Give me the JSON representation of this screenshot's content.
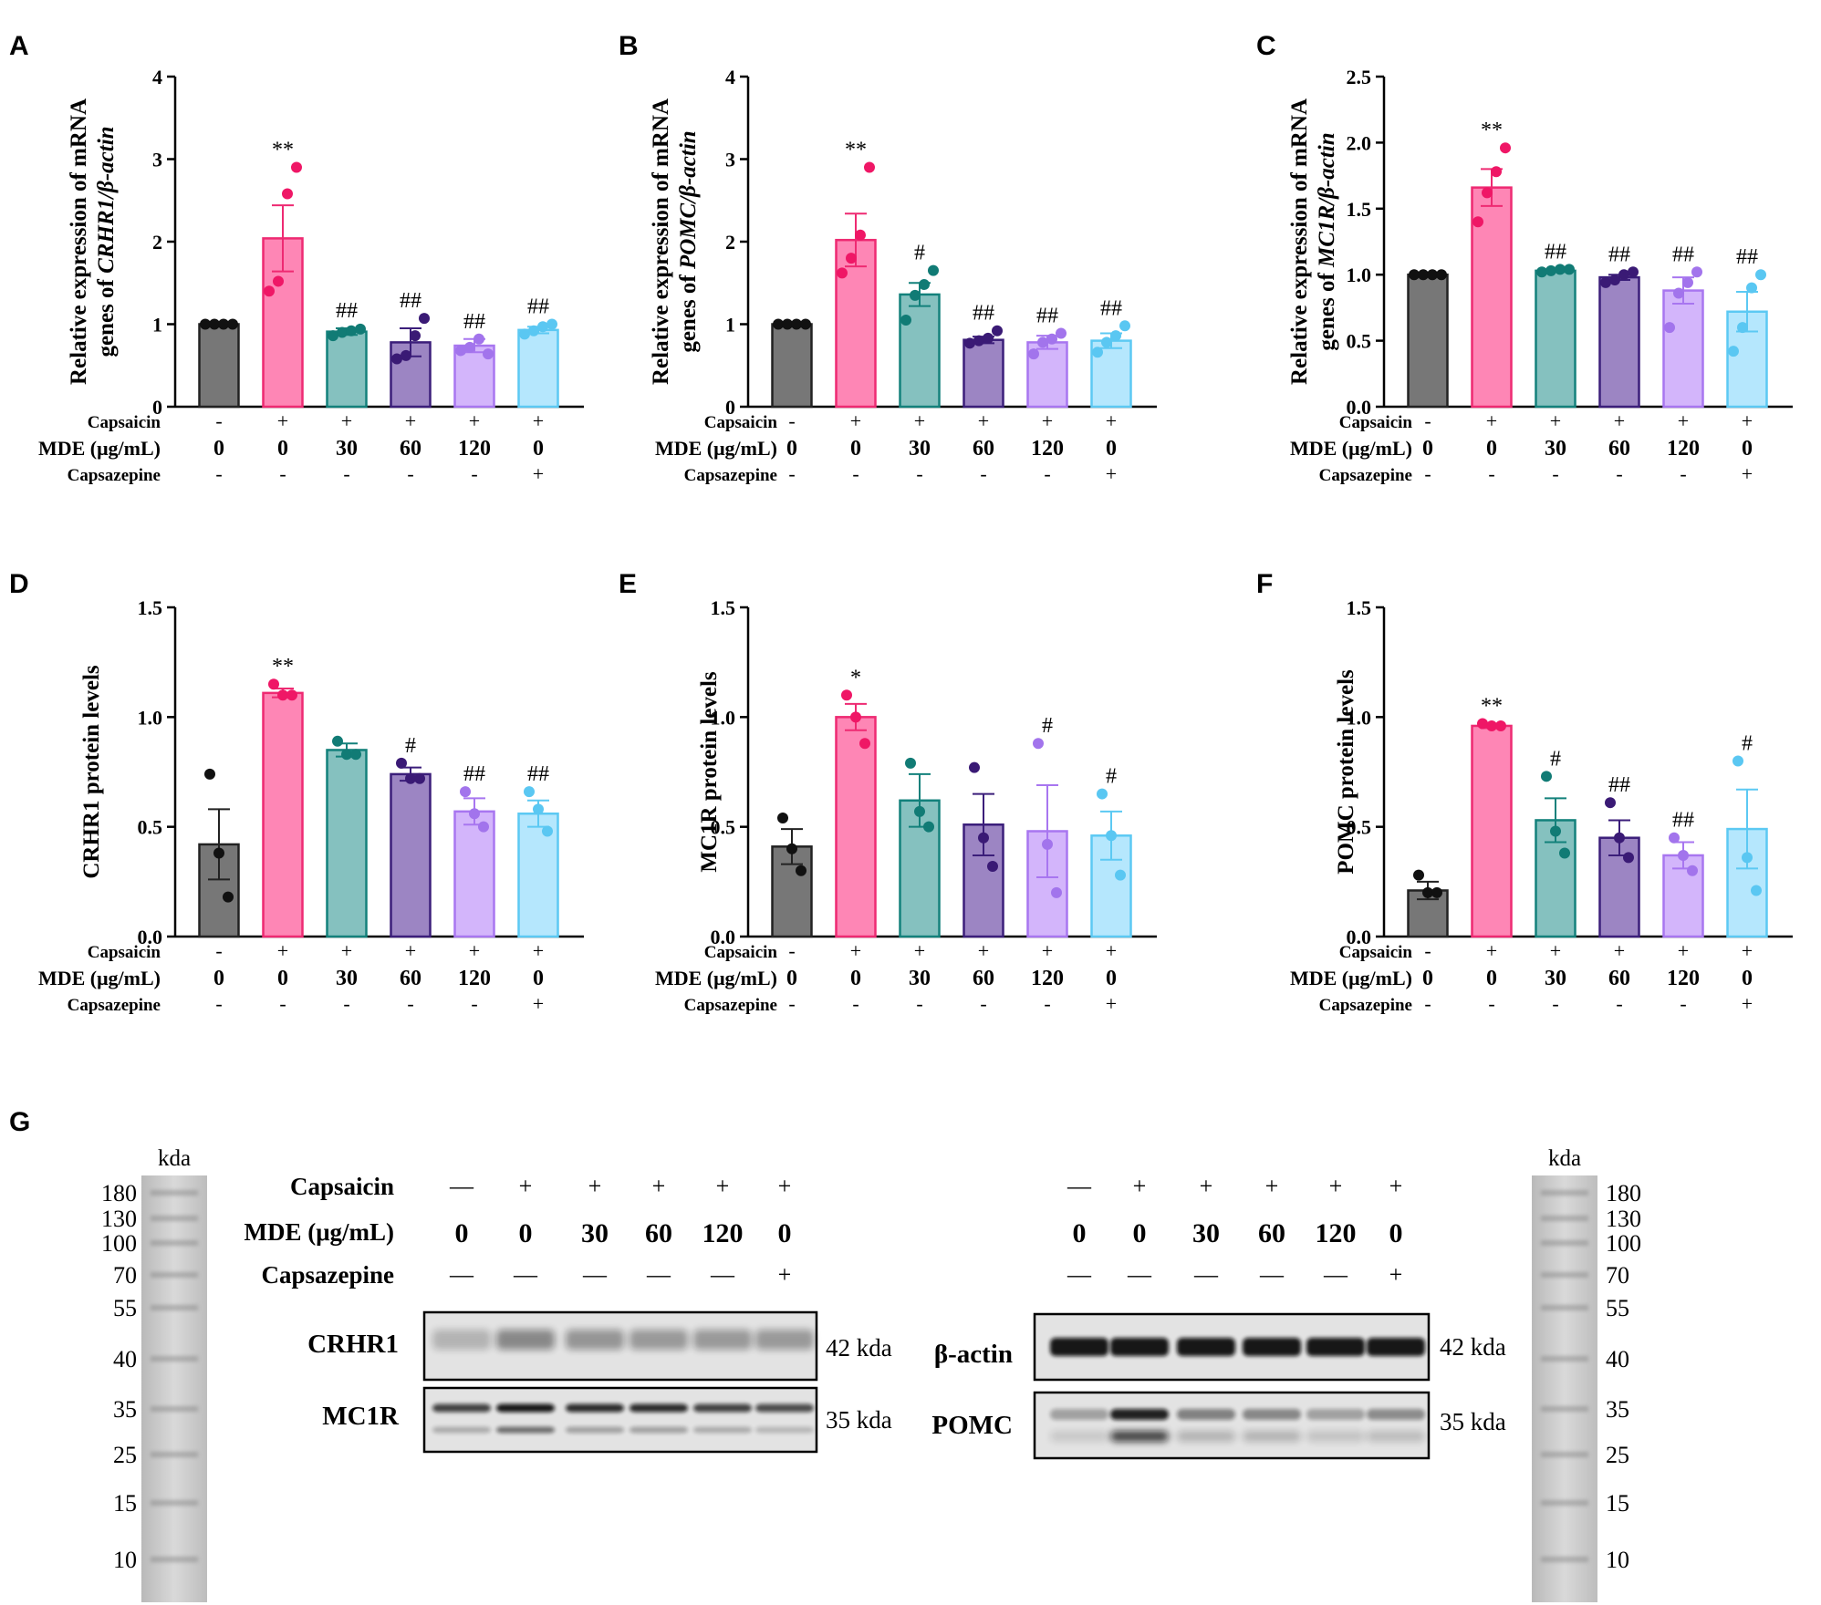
{
  "condition_labels": [
    "Capsaicin",
    "MDE (μg/mL)",
    "Capsazepine"
  ],
  "conditions": {
    "capsaicin": [
      "-",
      "+",
      "+",
      "+",
      "+",
      "+"
    ],
    "mde": [
      "0",
      "0",
      "30",
      "60",
      "120",
      "0"
    ],
    "capsazepine": [
      "-",
      "-",
      "-",
      "-",
      "-",
      "+"
    ]
  },
  "colors": {
    "fill": [
      "#777777",
      "#fe86b5",
      "#85c1bf",
      "#9c85c3",
      "#d3b5fb",
      "#b5e7fd"
    ],
    "edge": [
      "#222222",
      "#ee2a72",
      "#13817b",
      "#3b1e7a",
      "#a876f0",
      "#5cc9f3"
    ],
    "dots": [
      "#111111",
      "#ef1766",
      "#117b75",
      "#3a1a75",
      "#a274ec",
      "#5ac7f2"
    ]
  },
  "chart_data": [
    {
      "panel": "A",
      "type": "bar",
      "ylabel_line1": "Relative expression of mRNA",
      "ylabel_pre": "genes of ",
      "ylabel_gene": "CRHR1/β-actin",
      "ylim": [
        0,
        4
      ],
      "yticks": [
        "0",
        "1",
        "2",
        "3",
        "4"
      ],
      "means": [
        1.0,
        2.04,
        0.91,
        0.78,
        0.74,
        0.93
      ],
      "sem": [
        0.0,
        0.4,
        0.04,
        0.17,
        0.08,
        0.04
      ],
      "points": [
        [
          1,
          1,
          1,
          1
        ],
        [
          1.4,
          1.52,
          2.58,
          2.9
        ],
        [
          0.86,
          0.9,
          0.92,
          0.94
        ],
        [
          0.58,
          0.62,
          0.86,
          1.07
        ],
        [
          0.68,
          0.72,
          0.82,
          0.64
        ],
        [
          0.88,
          0.92,
          0.97,
          1.0
        ]
      ],
      "sig": [
        "",
        "**",
        "##",
        "##",
        "##",
        "##"
      ]
    },
    {
      "panel": "B",
      "type": "bar",
      "ylabel_line1": "Relative expression of mRNA",
      "ylabel_pre": "genes of ",
      "ylabel_gene": "POMC/β-actin",
      "ylim": [
        0,
        4
      ],
      "yticks": [
        "0",
        "1",
        "2",
        "3",
        "4"
      ],
      "means": [
        1.0,
        2.02,
        1.36,
        0.81,
        0.78,
        0.8
      ],
      "sem": [
        0.0,
        0.32,
        0.14,
        0.04,
        0.08,
        0.09
      ],
      "points": [
        [
          1,
          1,
          1,
          1
        ],
        [
          1.62,
          1.8,
          2.08,
          2.9
        ],
        [
          1.05,
          1.35,
          1.48,
          1.65
        ],
        [
          0.77,
          0.8,
          0.83,
          0.92
        ],
        [
          0.64,
          0.78,
          0.82,
          0.89
        ],
        [
          0.66,
          0.78,
          0.86,
          0.98
        ]
      ],
      "sig": [
        "",
        "**",
        "#",
        "##",
        "##",
        "##"
      ]
    },
    {
      "panel": "C",
      "type": "bar",
      "ylabel_line1": "Relative expression of mRNA",
      "ylabel_pre": "genes of ",
      "ylabel_gene": "MC1R/β-actin",
      "ylim": [
        0,
        2.5
      ],
      "yticks": [
        "0.0",
        "0.5",
        "1.0",
        "1.5",
        "2.0",
        "2.5"
      ],
      "means": [
        1.0,
        1.66,
        1.03,
        0.98,
        0.88,
        0.72
      ],
      "sem": [
        0.0,
        0.14,
        0.01,
        0.02,
        0.1,
        0.15
      ],
      "points": [
        [
          1,
          1,
          1,
          1
        ],
        [
          1.4,
          1.62,
          1.78,
          1.96
        ],
        [
          1.02,
          1.03,
          1.04,
          1.04
        ],
        [
          0.94,
          0.96,
          1.0,
          1.02
        ],
        [
          0.6,
          0.86,
          0.94,
          1.02
        ],
        [
          0.42,
          0.6,
          0.9,
          1.0
        ]
      ],
      "sig": [
        "",
        "**",
        "##",
        "##",
        "##",
        "##"
      ]
    },
    {
      "panel": "D",
      "type": "bar",
      "ylabel": "CRHR1 protein levels",
      "ylim": [
        0,
        1.5
      ],
      "yticks": [
        "0.0",
        "0.5",
        "1.0",
        "1.5"
      ],
      "means": [
        0.42,
        1.11,
        0.85,
        0.74,
        0.57,
        0.56
      ],
      "sem": [
        0.16,
        0.02,
        0.03,
        0.03,
        0.06,
        0.06
      ],
      "points": [
        [
          0.74,
          0.38,
          0.18
        ],
        [
          1.15,
          1.1,
          1.1
        ],
        [
          0.89,
          0.83,
          0.83
        ],
        [
          0.79,
          0.72,
          0.72
        ],
        [
          0.66,
          0.56,
          0.5
        ],
        [
          0.66,
          0.58,
          0.48
        ]
      ],
      "sig": [
        "",
        "**",
        "",
        "#",
        "##",
        "##"
      ]
    },
    {
      "panel": "E",
      "type": "bar",
      "ylabel": "MC1R protein levels",
      "ylim": [
        0,
        1.5
      ],
      "yticks": [
        "0.0",
        "0.5",
        "1.0",
        "1.5"
      ],
      "means": [
        0.41,
        1.0,
        0.62,
        0.51,
        0.48,
        0.46
      ],
      "sem": [
        0.08,
        0.06,
        0.12,
        0.14,
        0.21,
        0.11
      ],
      "points": [
        [
          0.54,
          0.4,
          0.3
        ],
        [
          1.1,
          1.0,
          0.88
        ],
        [
          0.79,
          0.57,
          0.5
        ],
        [
          0.77,
          0.45,
          0.32
        ],
        [
          0.88,
          0.42,
          0.2
        ],
        [
          0.65,
          0.46,
          0.28
        ]
      ],
      "sig": [
        "",
        "*",
        "",
        "",
        "#",
        "#"
      ]
    },
    {
      "panel": "F",
      "type": "bar",
      "ylabel": "POMC protein levels",
      "ylim": [
        0,
        1.5
      ],
      "yticks": [
        "0.0",
        "0.5",
        "1.0",
        "1.5"
      ],
      "means": [
        0.21,
        0.96,
        0.53,
        0.45,
        0.37,
        0.49
      ],
      "sem": [
        0.04,
        0.01,
        0.1,
        0.08,
        0.06,
        0.18
      ],
      "points": [
        [
          0.28,
          0.2,
          0.2
        ],
        [
          0.97,
          0.96,
          0.96
        ],
        [
          0.73,
          0.48,
          0.38
        ],
        [
          0.61,
          0.45,
          0.36
        ],
        [
          0.45,
          0.37,
          0.3
        ],
        [
          0.8,
          0.36,
          0.21
        ]
      ],
      "sig": [
        "",
        "**",
        "#",
        "##",
        "##",
        "#"
      ]
    }
  ],
  "blot": {
    "panel": "G",
    "kda_label": "kda",
    "ladder_marks": [
      "180",
      "130",
      "100",
      "70",
      "55",
      "40",
      "35",
      "25",
      "15",
      "10"
    ],
    "capsaicin": [
      "—",
      "+",
      "+",
      "+",
      "+",
      "+"
    ],
    "capsazepine": [
      "—",
      "—",
      "—",
      "—",
      "—",
      "+"
    ],
    "left_bands": [
      {
        "name": "CRHR1",
        "size": "42 kda"
      },
      {
        "name": "MC1R",
        "size": "35 kda"
      }
    ],
    "right_bands": [
      {
        "name": "β-actin",
        "size": "42 kda"
      },
      {
        "name": "POMC",
        "size": "35 kda"
      }
    ]
  }
}
